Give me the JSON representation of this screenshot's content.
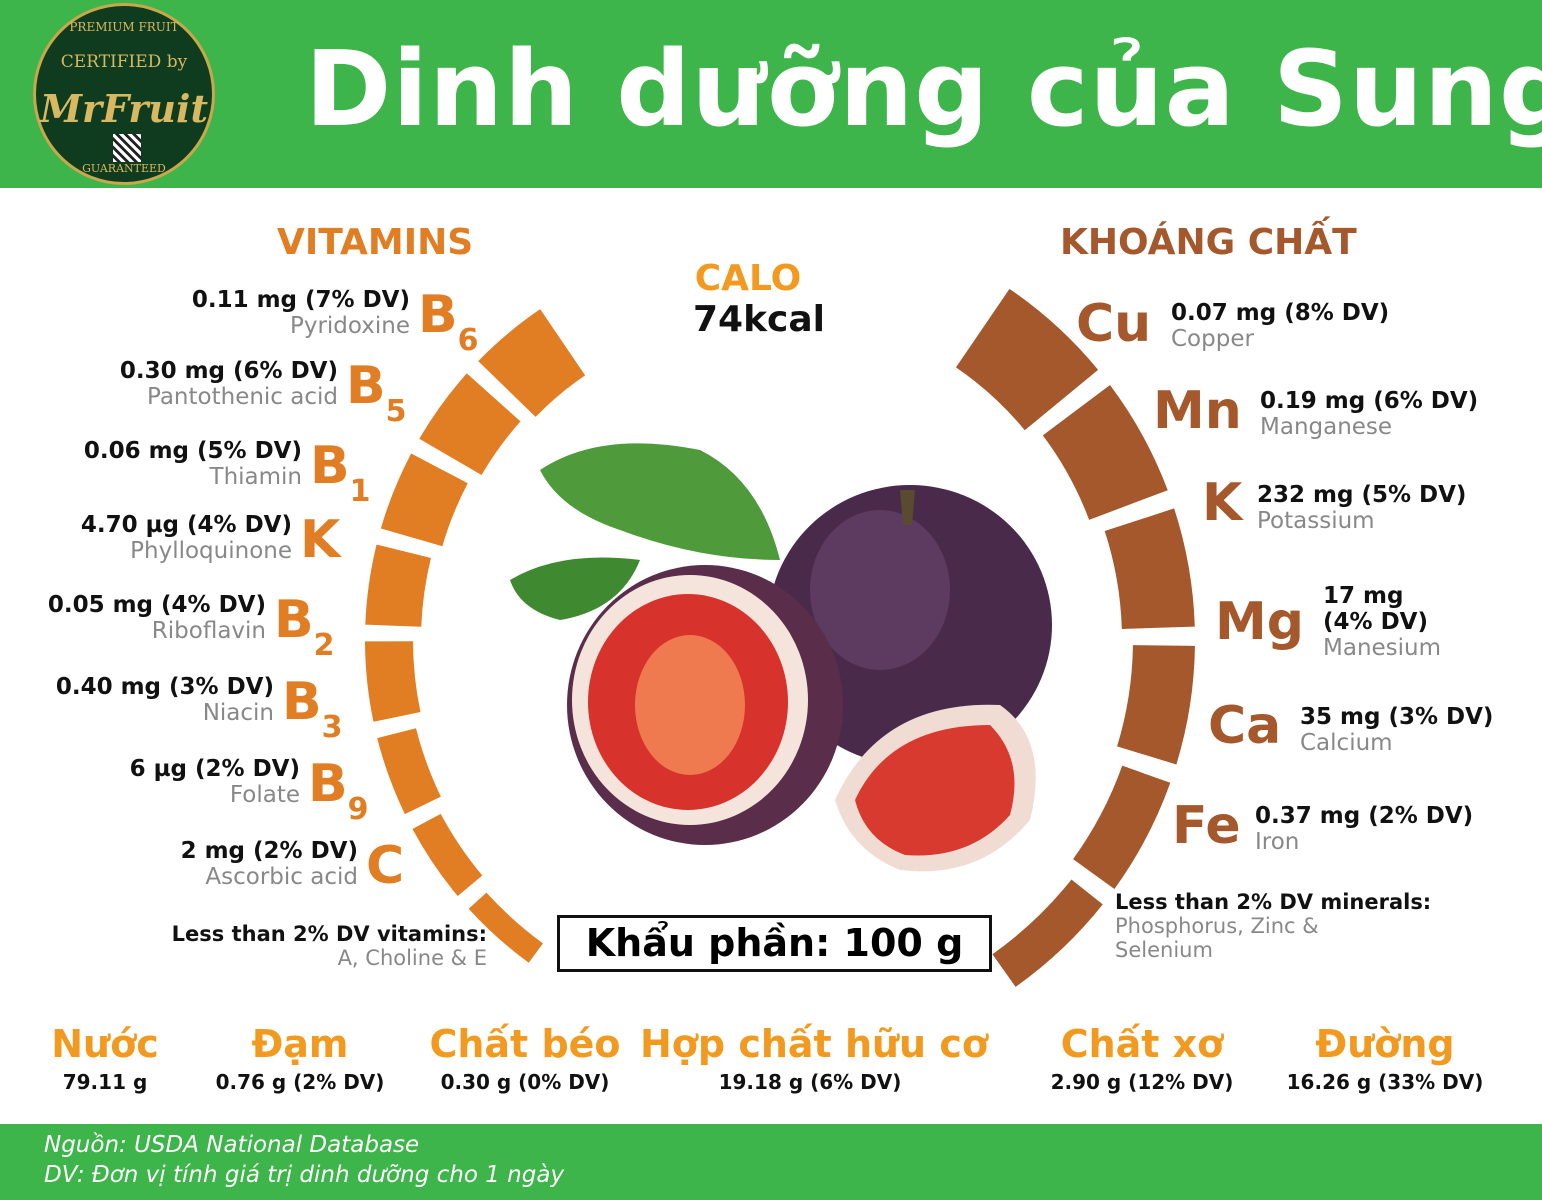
{
  "header": {
    "title": "Dinh dưỡng của Sung"
  },
  "logo": {
    "line1": "PREMIUM FRUIT",
    "line2": "CERTIFIED by",
    "brand": "MrFruit",
    "line4": "GUARANTEED"
  },
  "colors": {
    "green": "#3db54a",
    "vitamin": "#e17d22",
    "mineral": "#a4582b",
    "nutrient": "#f29a1f"
  },
  "calo": {
    "label": "CALO",
    "value": "74kcal"
  },
  "serving": "Khẩu phần: 100 g",
  "vitamins": {
    "heading": "VITAMINS",
    "items": [
      {
        "value": "0.11 mg (7% DV)",
        "name": "Pyridoxine",
        "symbol": "B",
        "subscript": "6"
      },
      {
        "value": "0.30 mg (6% DV)",
        "name": "Pantothenic acid",
        "symbol": "B",
        "subscript": "5"
      },
      {
        "value": "0.06 mg (5% DV)",
        "name": "Thiamin",
        "symbol": "B",
        "subscript": "1"
      },
      {
        "value": "4.70 µg (4% DV)",
        "name": "Phylloquinone",
        "symbol": "K",
        "subscript": ""
      },
      {
        "value": "0.05 mg (4% DV)",
        "name": "Riboflavin",
        "symbol": "B",
        "subscript": "2"
      },
      {
        "value": "0.40 mg (3% DV)",
        "name": "Niacin",
        "symbol": "B",
        "subscript": "3"
      },
      {
        "value": "6 µg (2% DV)",
        "name": "Folate",
        "symbol": "B",
        "subscript": "9"
      },
      {
        "value": "2 mg (2% DV)",
        "name": "Ascorbic acid",
        "symbol": "C",
        "subscript": ""
      }
    ],
    "less_label": "Less than 2% DV vitamins:",
    "less_items": "A, Choline & E"
  },
  "minerals": {
    "heading": "KHOÁNG CHẤT",
    "items": [
      {
        "symbol": "Cu",
        "value": "0.07 mg (8% DV)",
        "name": "Copper"
      },
      {
        "symbol": "Mn",
        "value": "0.19 mg (6% DV)",
        "name": "Manganese"
      },
      {
        "symbol": "K",
        "value": "232 mg (5% DV)",
        "name": "Potassium"
      },
      {
        "symbol": "Mg",
        "value": "17 mg",
        "value2": "(4% DV)",
        "name": "Manesium"
      },
      {
        "symbol": "Ca",
        "value": "35 mg (3% DV)",
        "name": "Calcium"
      },
      {
        "symbol": "Fe",
        "value": "0.37 mg (2% DV)",
        "name": "Iron"
      }
    ],
    "less_label": "Less than 2% DV minerals:",
    "less_items1": "Phosphorus, Zinc &",
    "less_items2": "Selenium"
  },
  "nutrients": [
    {
      "name": "Nước",
      "value": "79.11 g"
    },
    {
      "name": "Đạm",
      "value": "0.76 g (2% DV)"
    },
    {
      "name": "Chất béo",
      "value": "0.30 g (0% DV)"
    },
    {
      "name": "Hợp chất hữu cơ",
      "value": "19.18 g (6% DV)"
    },
    {
      "name": "Chất xơ",
      "value": "2.90 g (12% DV)"
    },
    {
      "name": "Đường",
      "value": "16.26 g (33% DV)"
    }
  ],
  "footer": {
    "source": "Nguồn: USDA National Database",
    "dv_note": "DV: Đơn vị tính giá trị dinh dưỡng cho 1 ngày"
  }
}
